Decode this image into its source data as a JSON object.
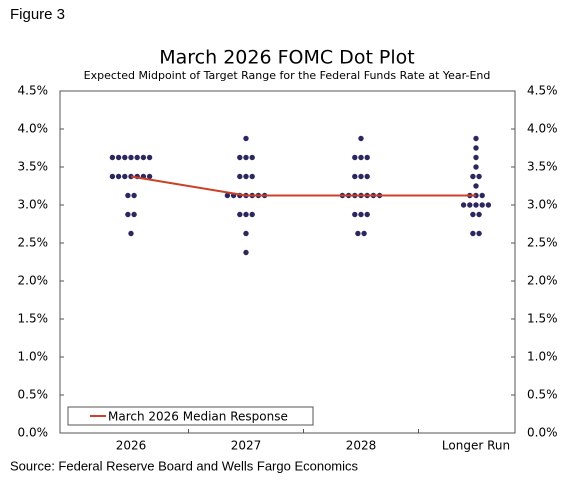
{
  "figure_label": "Figure 3",
  "source": "Source: Federal Reserve Board and Wells Fargo Economics",
  "chart_data": {
    "type": "dot",
    "title": "March 2026 FOMC Dot Plot",
    "subtitle": "Expected Midpoint of Target Range for the Federal Funds Rate at Year-End",
    "categories": [
      "2026",
      "2027",
      "2028",
      "Longer Run"
    ],
    "dot_color": "#2b2760",
    "dots": [
      {
        "values": [
          3.625,
          3.625,
          3.625,
          3.625,
          3.625,
          3.625,
          3.625,
          3.375,
          3.375,
          3.375,
          3.375,
          3.375,
          3.375,
          3.375,
          3.125,
          3.125,
          2.875,
          2.875,
          2.625
        ]
      },
      {
        "values": [
          3.875,
          3.625,
          3.625,
          3.625,
          3.375,
          3.375,
          3.375,
          3.125,
          3.125,
          3.125,
          3.125,
          3.125,
          3.125,
          3.125,
          2.875,
          2.875,
          2.875,
          2.625,
          2.375
        ]
      },
      {
        "values": [
          3.875,
          3.625,
          3.625,
          3.625,
          3.375,
          3.375,
          3.375,
          3.125,
          3.125,
          3.125,
          3.125,
          3.125,
          3.125,
          3.125,
          2.875,
          2.875,
          2.875,
          2.625,
          2.625
        ]
      },
      {
        "values": [
          3.875,
          3.75,
          3.625,
          3.5,
          3.375,
          3.375,
          3.25,
          3.125,
          3.125,
          3.125,
          3.0,
          3.0,
          3.0,
          3.0,
          3.0,
          2.875,
          2.875,
          2.625,
          2.625
        ]
      }
    ],
    "series": [
      {
        "name": "March 2026 Median Response",
        "color": "#cc4228",
        "values": [
          3.375,
          3.125,
          3.125,
          3.125
        ]
      }
    ],
    "ylim": [
      0,
      4.5
    ],
    "yticks": [
      {
        "value": 0,
        "label": "0.0%"
      },
      {
        "value": 0.5,
        "label": "0.5%"
      },
      {
        "value": 1,
        "label": "1.0%"
      },
      {
        "value": 1.5,
        "label": "1.5%"
      },
      {
        "value": 2,
        "label": "2.0%"
      },
      {
        "value": 2.5,
        "label": "2.5%"
      },
      {
        "value": 3,
        "label": "3.0%"
      },
      {
        "value": 3.5,
        "label": "3.5%"
      },
      {
        "value": 4,
        "label": "4.0%"
      },
      {
        "value": 4.5,
        "label": "4.5%"
      }
    ],
    "legend_position": "lower left"
  }
}
